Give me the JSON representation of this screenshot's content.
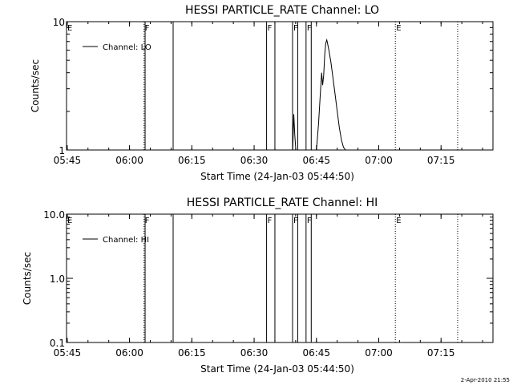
{
  "chart_data": [
    {
      "type": "line",
      "title": "HESSI PARTICLE_RATE Channel: LO",
      "xlabel": "Start Time (24-Jan-03 05:44:50)",
      "ylabel": "Counts/sec",
      "xlim": [
        "05:44:50",
        "07:27:30"
      ],
      "x_ticks": [
        "05:45",
        "06:00",
        "06:15",
        "06:30",
        "06:45",
        "07:00",
        "07:15"
      ],
      "ylim": [
        1,
        10
      ],
      "y_scale": "log",
      "y_ticks": [
        "1",
        "10"
      ],
      "legend": {
        "position": "top-left",
        "entries": [
          "Channel: LO"
        ]
      },
      "series": [
        {
          "name": "Channel: LO",
          "x": [
            "06:39:18",
            "06:39:33",
            "06:39:48",
            "06:40:03",
            "06:45:00",
            "06:45:30",
            "06:46:00",
            "06:46:15",
            "06:46:30",
            "06:46:45",
            "06:47:00",
            "06:47:15",
            "06:47:30",
            "06:47:45",
            "06:48:00",
            "06:48:30",
            "06:49:00",
            "06:49:30",
            "06:50:00",
            "06:50:30",
            "06:51:00",
            "06:51:30",
            "06:52:00"
          ],
          "y": [
            1.0,
            1.9,
            1.3,
            1.0,
            1.0,
            1.6,
            3.0,
            4.0,
            3.2,
            3.8,
            5.5,
            6.8,
            7.2,
            6.6,
            6.0,
            4.8,
            3.6,
            2.7,
            2.0,
            1.5,
            1.2,
            1.05,
            1.0
          ]
        }
      ],
      "markers": [
        {
          "time": "05:44:50",
          "label": "E",
          "style": "dotted"
        },
        {
          "time": "06:03:30",
          "label": "F",
          "style": "dotted"
        },
        {
          "time": "06:03:45",
          "label": "",
          "style": "solid"
        },
        {
          "time": "06:10:30",
          "label": "",
          "style": "solid"
        },
        {
          "time": "06:33:00",
          "label": "F",
          "style": "solid"
        },
        {
          "time": "06:35:00",
          "label": "",
          "style": "solid"
        },
        {
          "time": "06:39:15",
          "label": "F",
          "style": "solid"
        },
        {
          "time": "06:40:30",
          "label": "",
          "style": "solid"
        },
        {
          "time": "06:42:30",
          "label": "F",
          "style": "solid"
        },
        {
          "time": "06:43:45",
          "label": "",
          "style": "solid"
        },
        {
          "time": "07:04:00",
          "label": "E",
          "style": "dotted"
        },
        {
          "time": "07:19:00",
          "label": "",
          "style": "dotted"
        }
      ]
    },
    {
      "type": "line",
      "title": "HESSI PARTICLE_RATE Channel: HI",
      "xlabel": "Start Time (24-Jan-03 05:44:50)",
      "ylabel": "Counts/sec",
      "xlim": [
        "05:44:50",
        "07:27:30"
      ],
      "x_ticks": [
        "05:45",
        "06:00",
        "06:15",
        "06:30",
        "06:45",
        "07:00",
        "07:15"
      ],
      "ylim": [
        0.1,
        10
      ],
      "y_scale": "log",
      "y_ticks": [
        "0.1",
        "1.0",
        "10.0"
      ],
      "legend": {
        "position": "top-left",
        "entries": [
          "Channel: HI"
        ]
      },
      "series": [
        {
          "name": "Channel: HI",
          "x": [],
          "y": []
        }
      ],
      "markers": [
        {
          "time": "05:44:50",
          "label": "E",
          "style": "dotted"
        },
        {
          "time": "06:03:30",
          "label": "F",
          "style": "dotted"
        },
        {
          "time": "06:03:45",
          "label": "",
          "style": "solid"
        },
        {
          "time": "06:10:30",
          "label": "",
          "style": "solid"
        },
        {
          "time": "06:33:00",
          "label": "F",
          "style": "solid"
        },
        {
          "time": "06:35:00",
          "label": "",
          "style": "solid"
        },
        {
          "time": "06:39:15",
          "label": "F",
          "style": "solid"
        },
        {
          "time": "06:40:30",
          "label": "",
          "style": "solid"
        },
        {
          "time": "06:42:30",
          "label": "F",
          "style": "solid"
        },
        {
          "time": "06:43:45",
          "label": "",
          "style": "solid"
        },
        {
          "time": "07:04:00",
          "label": "E",
          "style": "dotted"
        },
        {
          "time": "07:19:00",
          "label": "",
          "style": "dotted"
        }
      ]
    }
  ],
  "footer": {
    "timestamp": "2-Apr-2010 21:55"
  }
}
